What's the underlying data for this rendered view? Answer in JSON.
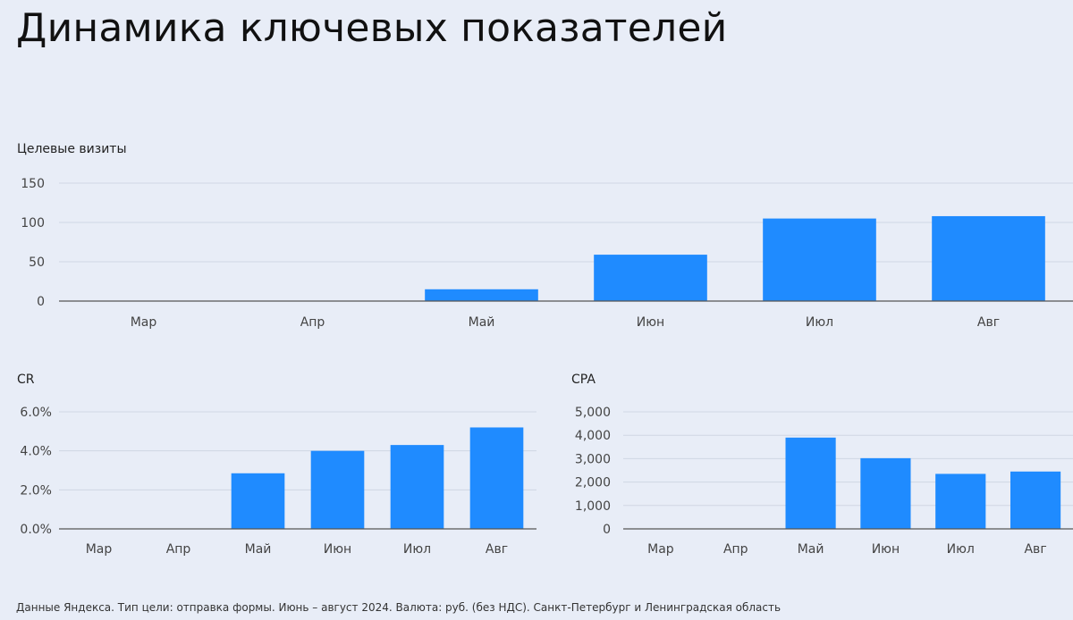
{
  "page_title": "Динамика ключевых показателей",
  "footnote": "Данные Яндекса. Тип цели: отправка формы. Июнь – август 2024. Валюта: руб. (без НДС). Санкт-Петербург и Ленинградская область",
  "colors": {
    "bar": "#1f8bff",
    "grid": "#cfd6e4",
    "axis": "#555555",
    "tick_text": "#444444"
  },
  "chart_data": [
    {
      "type": "bar",
      "title": "Целевые визиты",
      "categories": [
        "Мар",
        "Апр",
        "Май",
        "Июн",
        "Июл",
        "Авг"
      ],
      "values": [
        0,
        0,
        15,
        59,
        105,
        108
      ],
      "ylim": [
        0,
        150
      ],
      "yticks": [
        "0",
        "50",
        "100",
        "150"
      ],
      "ytick_values": [
        0,
        50,
        100,
        150
      ],
      "grid": true
    },
    {
      "type": "bar",
      "title": "CR",
      "categories": [
        "Мар",
        "Апр",
        "Май",
        "Июн",
        "Июл",
        "Авг"
      ],
      "values": [
        0,
        0,
        2.85,
        4.0,
        4.3,
        5.2
      ],
      "ylim": [
        0,
        6
      ],
      "yticks": [
        "0.0%",
        "2.0%",
        "4.0%",
        "6.0%"
      ],
      "ytick_values": [
        0,
        2,
        4,
        6
      ],
      "grid": true
    },
    {
      "type": "bar",
      "title": "CPA",
      "categories": [
        "Мар",
        "Апр",
        "Май",
        "Июн",
        "Июл",
        "Авг"
      ],
      "values": [
        0,
        0,
        3900,
        3020,
        2350,
        2450
      ],
      "ylim": [
        0,
        5000
      ],
      "yticks": [
        "0",
        "1,000",
        "2,000",
        "3,000",
        "4,000",
        "5,000"
      ],
      "ytick_values": [
        0,
        1000,
        2000,
        3000,
        4000,
        5000
      ],
      "grid": true
    }
  ]
}
